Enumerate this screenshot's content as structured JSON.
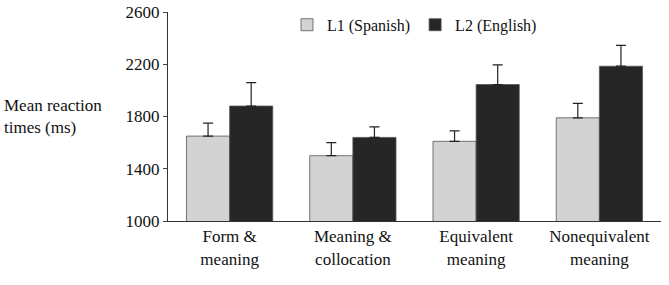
{
  "chart_data": {
    "type": "bar",
    "y_label": "Mean reaction times (ms)",
    "categories": [
      "Form & meaning",
      "Meaning & collocation",
      "Equivalent meaning",
      "Nonequivalent meaning"
    ],
    "series": [
      {
        "name": "L1 (Spanish)",
        "color": "#d3d3d3",
        "values": [
          1650,
          1500,
          1610,
          1790
        ],
        "errors": [
          100,
          100,
          80,
          110
        ]
      },
      {
        "name": "L2 (English)",
        "color": "#262626",
        "values": [
          1880,
          1640,
          2045,
          2185
        ],
        "errors": [
          180,
          80,
          150,
          160
        ]
      }
    ],
    "ylim": [
      1000,
      2600
    ],
    "yticks": [
      1000,
      1400,
      1800,
      2200,
      2600
    ],
    "grid": false,
    "legend": "top"
  }
}
